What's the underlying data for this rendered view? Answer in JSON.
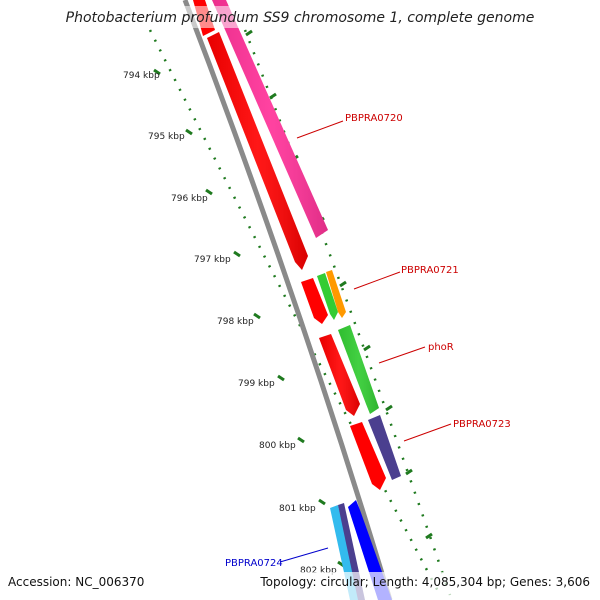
{
  "title": "Photobacterium profundum SS9 chromosome 1, complete genome",
  "footer": {
    "accession": "Accession: NC_006370",
    "summary": "Topology: circular; Length: 4,085,304 bp; Genes: 3,606"
  },
  "ticks": [
    "794 kbp",
    "795 kbp",
    "796 kbp",
    "797 kbp",
    "798 kbp",
    "799 kbp",
    "800 kbp",
    "801 kbp",
    "802 kbp"
  ],
  "gene_labels": [
    {
      "text": "PBPRA0720",
      "color": "#cc0000"
    },
    {
      "text": "PBPRA0721",
      "color": "#cc0000"
    },
    {
      "text": "phoR",
      "color": "#cc0000"
    },
    {
      "text": "PBPRA0723",
      "color": "#cc0000"
    },
    {
      "text": "PBPRA0724",
      "color": "#0000cc"
    }
  ],
  "colors": {
    "backbone": "#8a8a8a",
    "tick_track": "#1f7a1f",
    "cds_forward": "#ff0000",
    "gene_pink": "#ff3399",
    "gene_green": "#33cc33",
    "gene_orange": "#ff9900",
    "gene_purple": "#4b3f8f",
    "gene_cyan": "#33bbee",
    "gene_blue": "#0000ff"
  }
}
